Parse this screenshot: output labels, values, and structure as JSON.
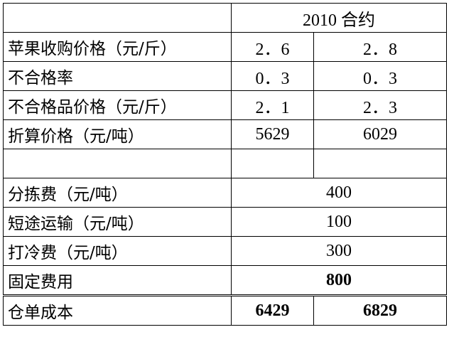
{
  "table": {
    "header": "2010 合约",
    "rows": [
      [
        "苹果收购价格（元/斤）",
        "2．6",
        "2．8"
      ],
      [
        "不合格率",
        "0．3",
        "0．3"
      ],
      [
        "不合格品价格（元/斤）",
        "2．1",
        "2．3"
      ],
      [
        "折算价格（元/吨）",
        "5629",
        "6029"
      ]
    ],
    "costs": [
      [
        "分拣费（元/吨）",
        "400"
      ],
      [
        "短途运输（元/吨）",
        "100"
      ],
      [
        "打冷费（元/吨）",
        "300"
      ],
      [
        "固定费用",
        "800"
      ]
    ],
    "total": [
      "仓单成本",
      "6429",
      "6829"
    ]
  }
}
